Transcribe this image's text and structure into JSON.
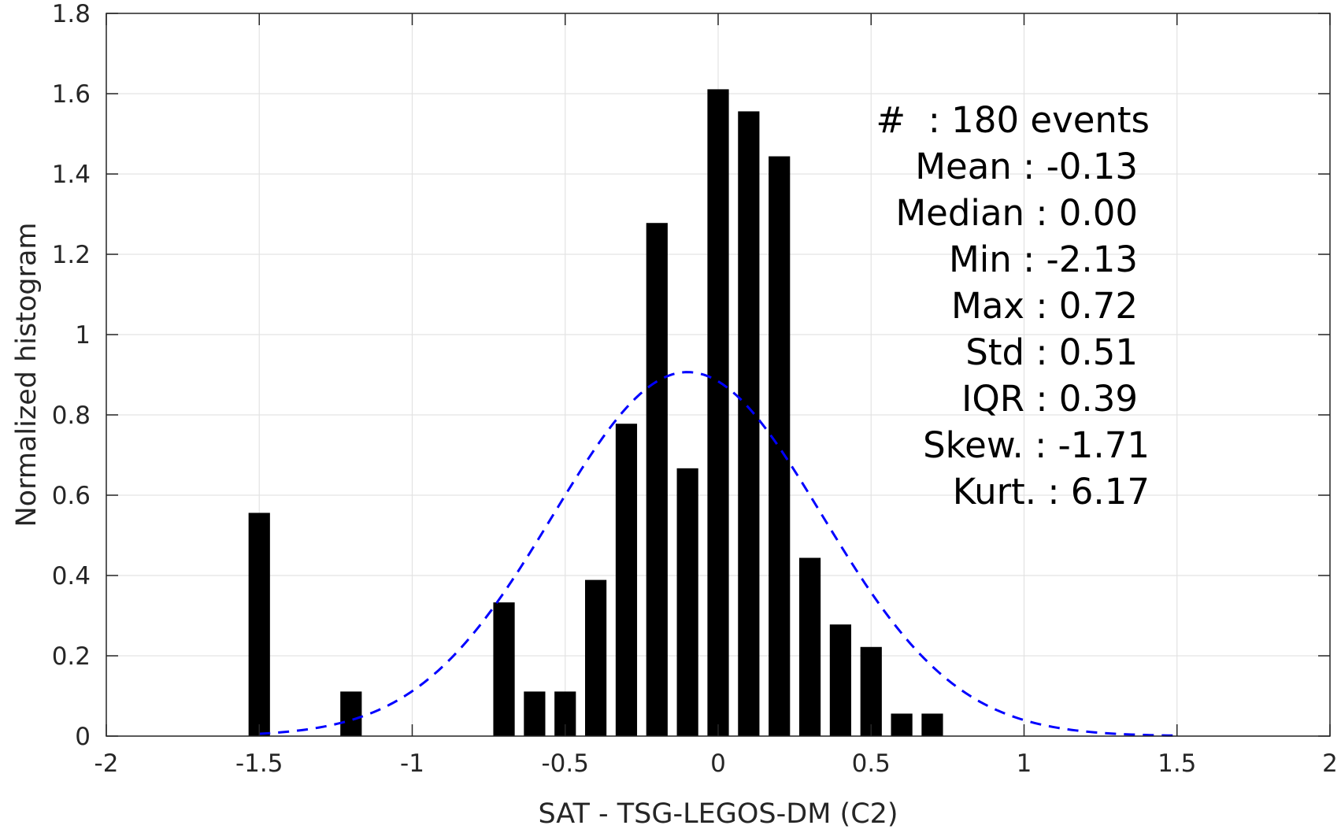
{
  "chart_data": {
    "type": "bar",
    "title": "",
    "xlabel": "SAT - TSG-LEGOS-DM (C2)",
    "ylabel": "Normalized histogram",
    "xlim": [
      -2,
      2
    ],
    "ylim": [
      0,
      1.8
    ],
    "grid": true,
    "xticks": [
      -2,
      -1.5,
      -1,
      -0.5,
      0,
      0.5,
      1,
      1.5,
      2
    ],
    "xtick_labels": [
      "-2",
      "-1.5",
      "-1",
      "-0.5",
      "0",
      "0.5",
      "1",
      "1.5",
      "2"
    ],
    "yticks": [
      0,
      0.2,
      0.4,
      0.6,
      0.8,
      1,
      1.2,
      1.4,
      1.6,
      1.8
    ],
    "ytick_labels": [
      "0",
      "0.2",
      "0.4",
      "0.6",
      "0.8",
      "1",
      "1.2",
      "1.4",
      "1.6",
      "1.8"
    ],
    "bar_color": "#000000",
    "bar_width": 0.07,
    "bars": [
      {
        "x": -1.5,
        "y": 0.556
      },
      {
        "x": -1.2,
        "y": 0.111
      },
      {
        "x": -0.7,
        "y": 0.333
      },
      {
        "x": -0.6,
        "y": 0.111
      },
      {
        "x": -0.5,
        "y": 0.111
      },
      {
        "x": -0.4,
        "y": 0.389
      },
      {
        "x": -0.3,
        "y": 0.778
      },
      {
        "x": -0.2,
        "y": 1.278
      },
      {
        "x": -0.1,
        "y": 0.667
      },
      {
        "x": 0.0,
        "y": 1.611
      },
      {
        "x": 0.1,
        "y": 1.556
      },
      {
        "x": 0.2,
        "y": 1.444
      },
      {
        "x": 0.3,
        "y": 0.444
      },
      {
        "x": 0.4,
        "y": 0.278
      },
      {
        "x": 0.5,
        "y": 0.222
      },
      {
        "x": 0.6,
        "y": 0.056
      },
      {
        "x": 0.7,
        "y": 0.056
      }
    ],
    "fit_curve": {
      "style": "dashed",
      "color": "#0000ff",
      "mean": -0.1,
      "std": 0.44,
      "x_range": [
        -1.5,
        1.5
      ]
    },
    "stats_lines": [
      "#  : 180 events",
      "Mean : -0.13",
      "Median : 0.00",
      "Min : -2.13",
      "Max : 0.72",
      "Std : 0.51",
      "IQR : 0.39",
      "Skew. : -1.71",
      "Kurt. : 6.17"
    ]
  }
}
